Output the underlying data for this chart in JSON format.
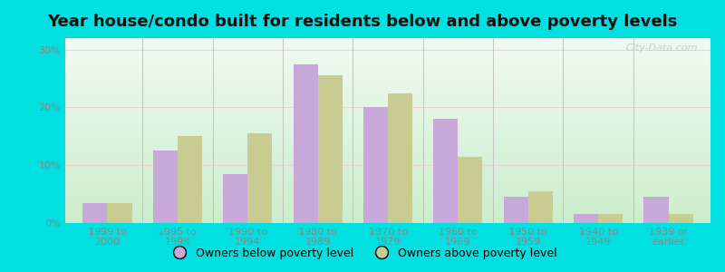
{
  "title": "Year house/condo built for residents below and above poverty levels",
  "categories": [
    "1999 to\n2000",
    "1995 to\n1998",
    "1990 to\n1994",
    "1980 to\n1989",
    "1970 to\n1979",
    "1960 to\n1969",
    "1950 to\n1959",
    "1940 to\n1949",
    "1939 or\nearlier"
  ],
  "below_poverty": [
    3.5,
    12.5,
    8.5,
    27.5,
    20.0,
    18.0,
    4.5,
    1.5,
    4.5
  ],
  "above_poverty": [
    3.5,
    15.0,
    15.5,
    25.5,
    22.5,
    11.5,
    5.5,
    1.5,
    1.5
  ],
  "below_color": "#c8a8d8",
  "above_color": "#c8cc90",
  "ylim": [
    0,
    32
  ],
  "yticks": [
    0,
    10,
    20,
    30
  ],
  "ytick_labels": [
    "0%",
    "10%",
    "20%",
    "30%"
  ],
  "bg_color_topleft": "#c8e8c8",
  "bg_color_topright": "#e8f4f8",
  "bg_color_bottom": "#e8f4e8",
  "outer_bg": "#00e0e0",
  "bar_width": 0.35,
  "legend_below_label": "Owners below poverty level",
  "legend_above_label": "Owners above poverty level",
  "title_fontsize": 13,
  "tick_fontsize": 8,
  "legend_fontsize": 9,
  "watermark": "City-Data.com",
  "tick_color": "#888888",
  "separator_color": "#bbbbbb"
}
